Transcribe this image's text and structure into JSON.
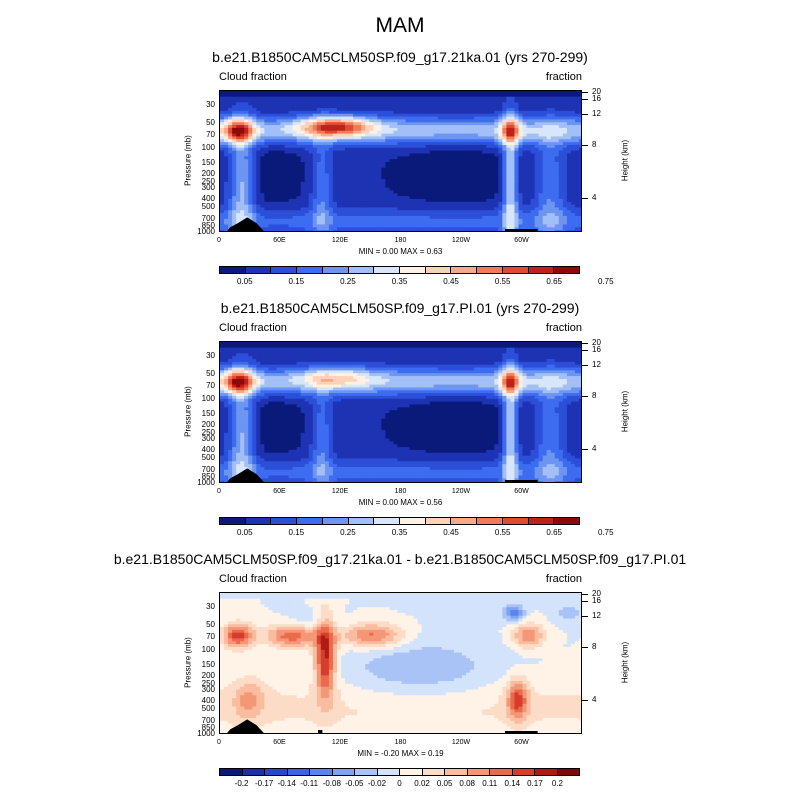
{
  "season": "MAM",
  "panels": [
    {
      "title": "b.e21.B1850CAM5CLM50SP.f09_g17.21ka.01 (yrs 270-299)",
      "left_label": "Cloud fraction",
      "right_label": "fraction",
      "stats": "MIN =   0.00  MAX =   0.63",
      "colorbar_ticks": [
        "0.05",
        "0.15",
        "0.25",
        "0.35",
        "0.45",
        "0.55",
        "0.65",
        "0.75"
      ],
      "colorbar_colors": [
        "#0a1a7a",
        "#1e32b4",
        "#2c4fd8",
        "#3d6cf0",
        "#6d95f2",
        "#a3bff7",
        "#d7e6fb",
        "#fff1e4",
        "#fcd3b9",
        "#f8aa88",
        "#f27a5a",
        "#e04a33",
        "#bf2218",
        "#8e0a0a"
      ],
      "field": "cloud"
    },
    {
      "title": "b.e21.B1850CAM5CLM50SP.f09_g17.PI.01 (yrs 270-299)",
      "left_label": "Cloud fraction",
      "right_label": "fraction",
      "stats": "MIN =   0.00  MAX =   0.56",
      "colorbar_ticks": [
        "0.05",
        "0.15",
        "0.25",
        "0.35",
        "0.45",
        "0.55",
        "0.65",
        "0.75"
      ],
      "colorbar_colors": [
        "#0a1a7a",
        "#1e32b4",
        "#2c4fd8",
        "#3d6cf0",
        "#6d95f2",
        "#a3bff7",
        "#d7e6fb",
        "#fff1e4",
        "#fcd3b9",
        "#f8aa88",
        "#f27a5a",
        "#e04a33",
        "#bf2218",
        "#8e0a0a"
      ],
      "field": "cloud"
    },
    {
      "title": "b.e21.B1850CAM5CLM50SP.f09_g17.21ka.01 - b.e21.B1850CAM5CLM50SP.f09_g17.PI.01",
      "left_label": "Cloud fraction",
      "right_label": "fraction",
      "stats": "MIN =  -0.20  MAX =   0.19",
      "colorbar_ticks": [
        "-0.2",
        "-0.17",
        "-0.14",
        "-0.11",
        "-0.08",
        "-0.05",
        "-0.02",
        "0",
        "0.02",
        "0.05",
        "0.08",
        "0.11",
        "0.14",
        "0.17",
        "0.2"
      ],
      "colorbar_colors": [
        "#0a1a7a",
        "#1d2fa9",
        "#2947cc",
        "#3a63e6",
        "#5a84ef",
        "#7fa2f2",
        "#a9c3f6",
        "#d3e3fb",
        "#fff2e6",
        "#fcdcc6",
        "#f9bc9f",
        "#f49776",
        "#ea6a4d",
        "#d63d2c",
        "#b01a14",
        "#7e0a0a"
      ],
      "field": "diff"
    }
  ],
  "chart_data": [
    {
      "type": "heatmap",
      "title": "b.e21.B1850CAM5CLM50SP.f09_g17.21ka.01 (yrs 270-299)",
      "ylabel": "Pressure (mb)",
      "y2label": "Height (km)",
      "x_ticks": [
        "0",
        "60E",
        "120E",
        "180",
        "120W",
        "60W"
      ],
      "y_ticks": [
        "1000",
        "850",
        "700",
        "500",
        "400",
        "300",
        "250",
        "200",
        "150",
        "100",
        "70",
        "50",
        "30"
      ],
      "y2_ticks": [
        "4",
        "8",
        "12",
        "16",
        "20"
      ],
      "min": 0.0,
      "max": 0.63
    },
    {
      "type": "heatmap",
      "title": "b.e21.B1850CAM5CLM50SP.f09_g17.PI.01 (yrs 270-299)",
      "ylabel": "Pressure (mb)",
      "y2label": "Height (km)",
      "x_ticks": [
        "0",
        "60E",
        "120E",
        "180",
        "120W",
        "60W"
      ],
      "y_ticks": [
        "1000",
        "850",
        "700",
        "500",
        "400",
        "300",
        "250",
        "200",
        "150",
        "100",
        "70",
        "50",
        "30"
      ],
      "y2_ticks": [
        "4",
        "8",
        "12",
        "16",
        "20"
      ],
      "min": 0.0,
      "max": 0.56
    },
    {
      "type": "heatmap",
      "title": "b.e21.B1850CAM5CLM50SP.f09_g17.21ka.01 - b.e21.B1850CAM5CLM50SP.f09_g17.PI.01",
      "ylabel": "Pressure (mb)",
      "y2label": "Height (km)",
      "x_ticks": [
        "0",
        "60E",
        "120E",
        "180",
        "120W",
        "60W"
      ],
      "y_ticks": [
        "1000",
        "850",
        "700",
        "500",
        "400",
        "300",
        "250",
        "200",
        "150",
        "100",
        "70",
        "50",
        "30"
      ],
      "y2_ticks": [
        "4",
        "8",
        "12",
        "16",
        "20"
      ],
      "min": -0.2,
      "max": 0.19
    }
  ]
}
